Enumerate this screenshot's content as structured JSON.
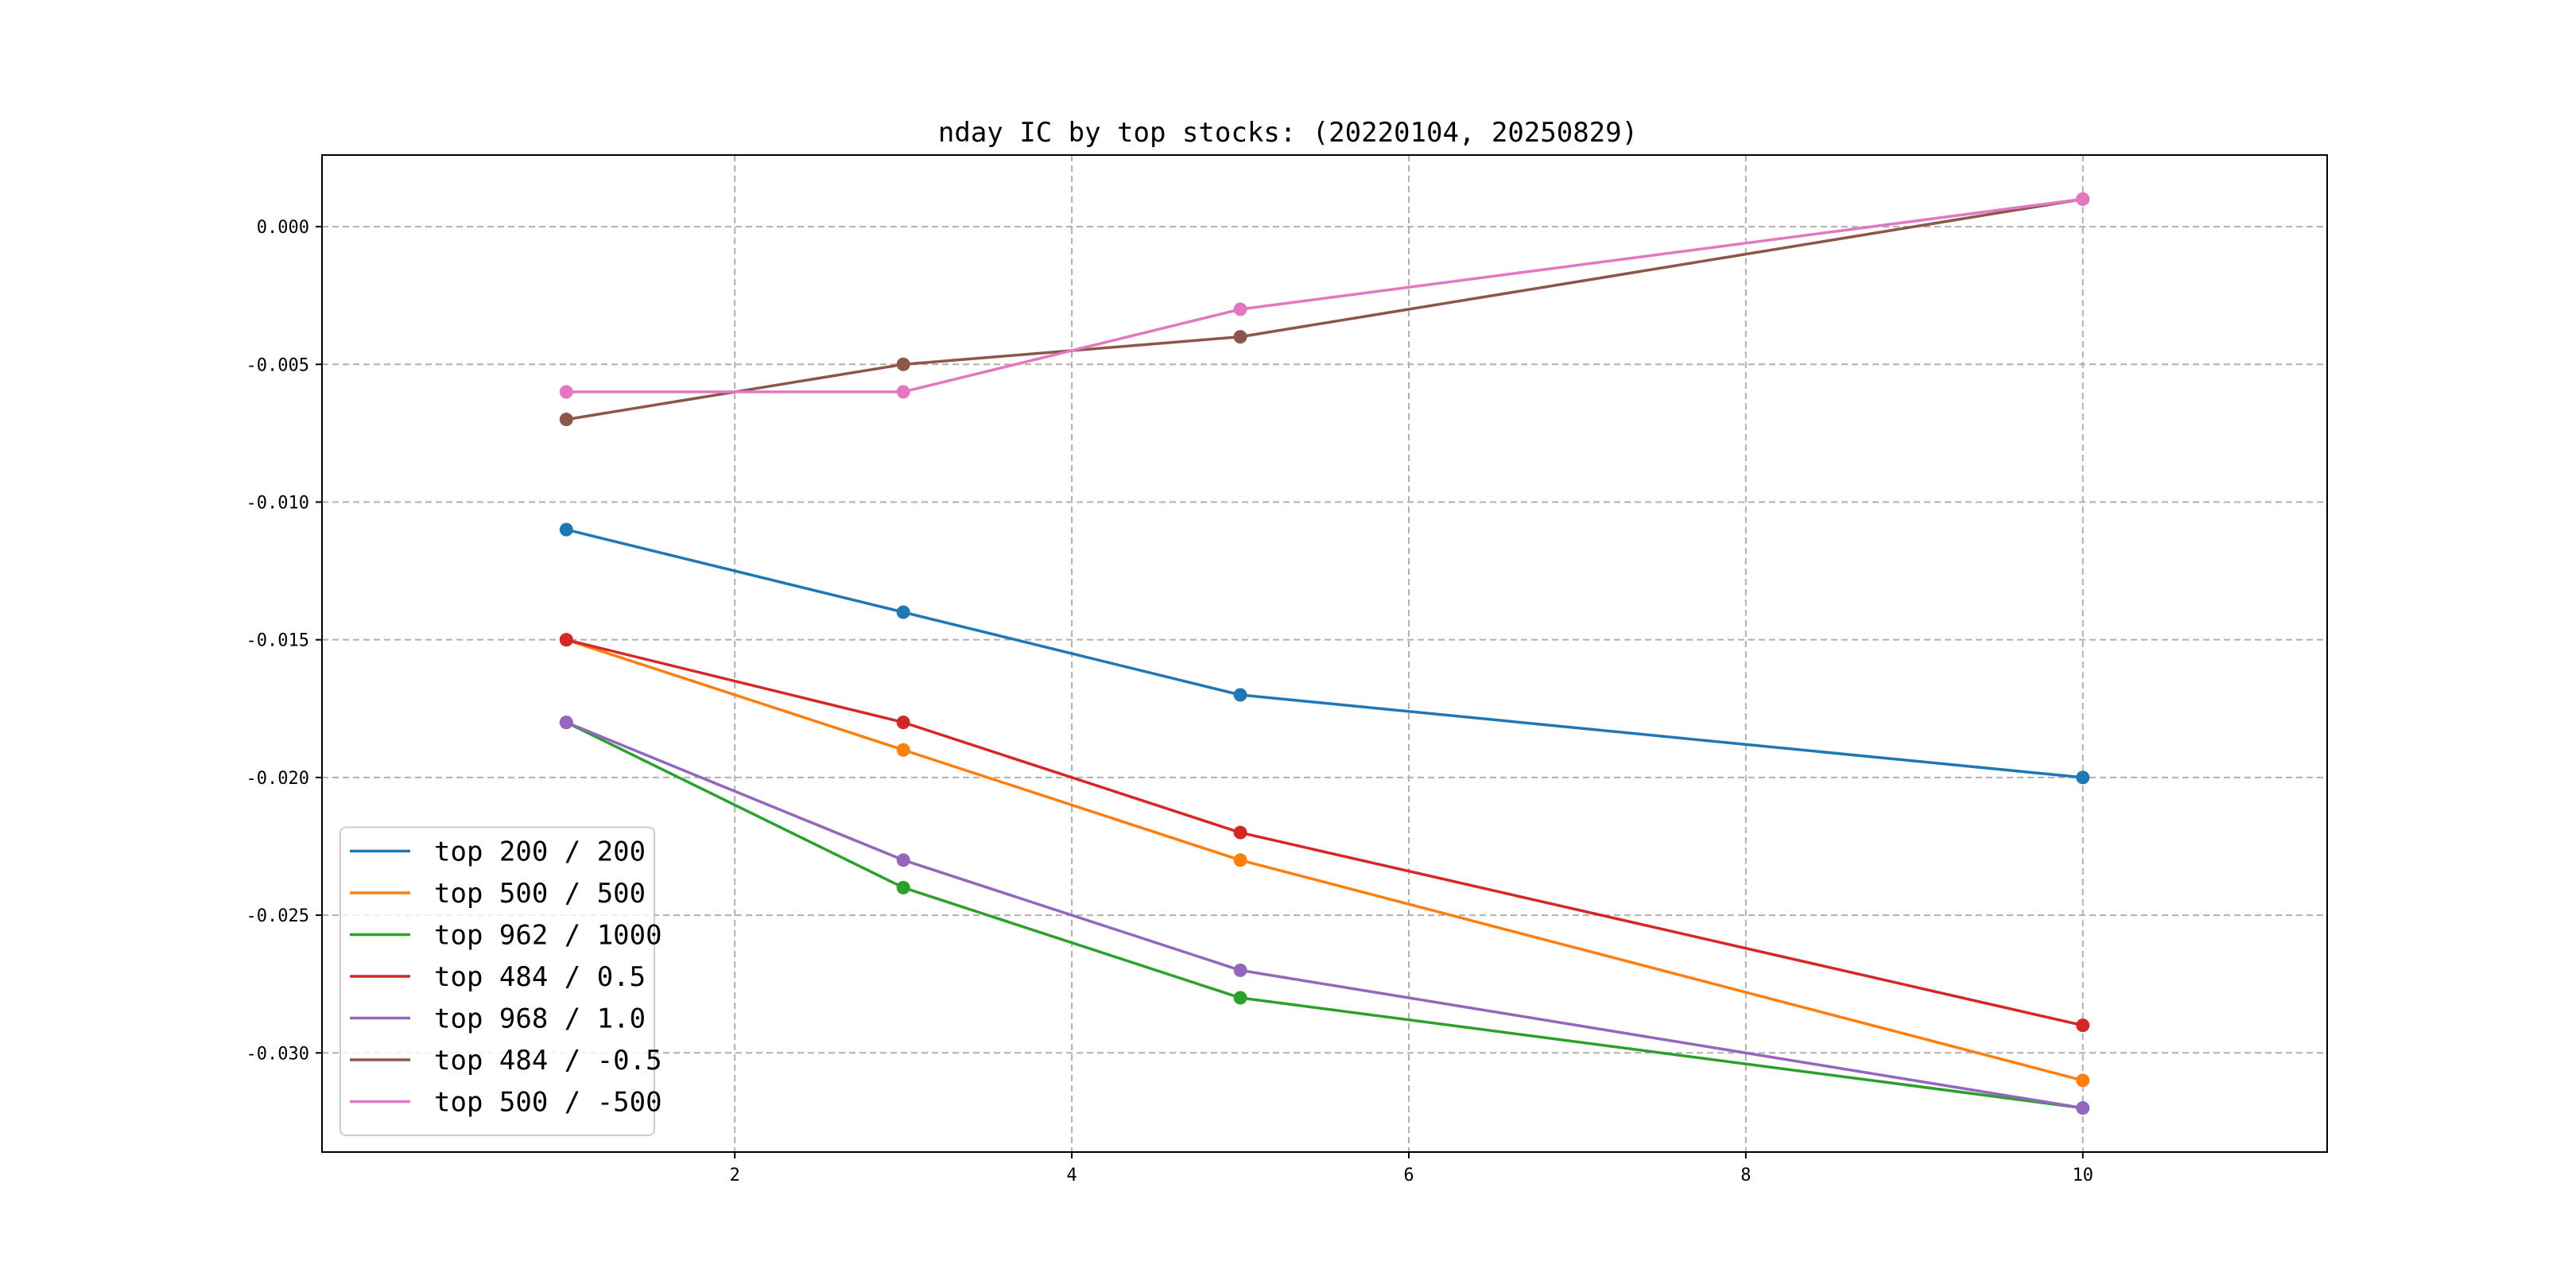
{
  "chart_data": {
    "type": "line",
    "title": "nday IC by top stocks: (20220104, 20250829)",
    "xlabel": "",
    "ylabel": "",
    "x": [
      1,
      3,
      5,
      10
    ],
    "xlim": [
      -0.45,
      11.45
    ],
    "ylim": [
      -0.0336,
      0.0026
    ],
    "xticks": [
      2,
      4,
      6,
      8,
      10
    ],
    "xtick_labels": [
      "2",
      "4",
      "6",
      "8",
      "10"
    ],
    "yticks": [
      0.0,
      -0.005,
      -0.01,
      -0.015,
      -0.02,
      -0.025,
      -0.03
    ],
    "ytick_labels": [
      "0.000",
      "-0.005",
      "-0.010",
      "-0.015",
      "-0.020",
      "-0.025",
      "-0.030"
    ],
    "grid": true,
    "legend_position": "lower-left",
    "series": [
      {
        "name": "top 200 / 200",
        "color": "#1f77b4",
        "values": [
          -0.011,
          -0.014,
          -0.017,
          -0.02
        ]
      },
      {
        "name": "top 500 / 500",
        "color": "#ff7f0e",
        "values": [
          -0.015,
          -0.019,
          -0.023,
          -0.031
        ]
      },
      {
        "name": "top 962 / 1000",
        "color": "#2ca02c",
        "values": [
          -0.018,
          -0.024,
          -0.028,
          -0.032
        ]
      },
      {
        "name": "top 484 / 0.5",
        "color": "#d62728",
        "values": [
          -0.015,
          -0.018,
          -0.022,
          -0.029
        ]
      },
      {
        "name": "top 968 / 1.0",
        "color": "#9467bd",
        "values": [
          -0.018,
          -0.023,
          -0.027,
          -0.032
        ]
      },
      {
        "name": "top 484 / -0.5",
        "color": "#8c564b",
        "values": [
          -0.007,
          -0.005,
          -0.004,
          0.001
        ]
      },
      {
        "name": "top 500 / -500",
        "color": "#e377c2",
        "values": [
          -0.006,
          -0.006,
          -0.003,
          0.001
        ]
      }
    ]
  }
}
